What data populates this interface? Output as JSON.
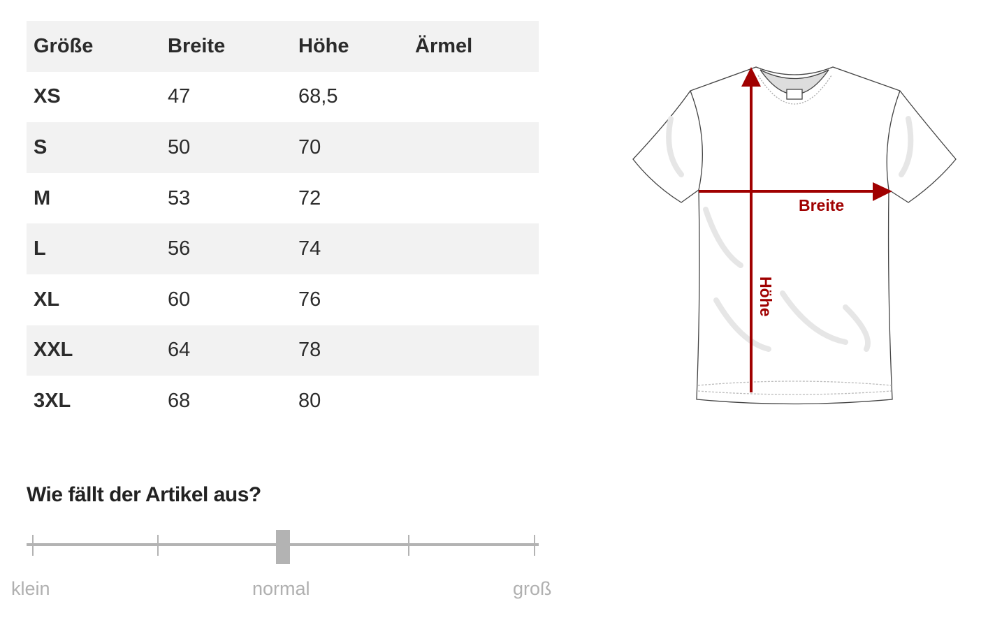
{
  "size_table": {
    "headers": [
      "Größe",
      "Breite",
      "Höhe",
      "Ärmel"
    ],
    "rows": [
      {
        "size": "XS",
        "breite": "47",
        "hoehe": "68,5",
        "aermel": ""
      },
      {
        "size": "S",
        "breite": "50",
        "hoehe": "70",
        "aermel": ""
      },
      {
        "size": "M",
        "breite": "53",
        "hoehe": "72",
        "aermel": ""
      },
      {
        "size": "L",
        "breite": "56",
        "hoehe": "74",
        "aermel": ""
      },
      {
        "size": "XL",
        "breite": "60",
        "hoehe": "76",
        "aermel": ""
      },
      {
        "size": "XXL",
        "breite": "64",
        "hoehe": "78",
        "aermel": ""
      },
      {
        "size": "3XL",
        "breite": "68",
        "hoehe": "80",
        "aermel": ""
      }
    ]
  },
  "diagram": {
    "width_label": "Breite",
    "height_label": "Höhe",
    "accent_color": "#a00000"
  },
  "fit": {
    "title": "Wie fällt der Artikel aus?",
    "labels": {
      "min": "klein",
      "mid": "normal",
      "max": "groß"
    },
    "value_fraction": 0.5,
    "steps": 5
  }
}
